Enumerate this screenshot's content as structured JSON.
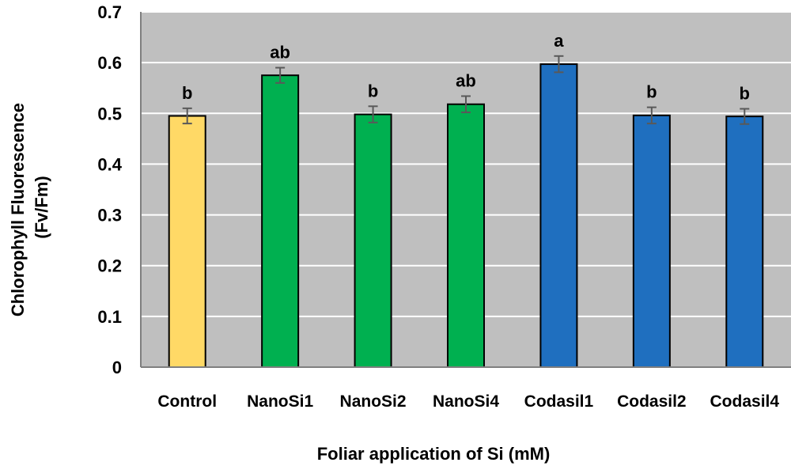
{
  "chart_data": {
    "type": "bar",
    "title": "",
    "xlabel": "Foliar application of Si (mM)",
    "ylabel_lines": [
      "Chlorophyll Fluorescence",
      "(Fv/Fm)"
    ],
    "ylim": [
      0,
      0.7
    ],
    "yticks": [
      "0",
      "0.1",
      "0.2",
      "0.3",
      "0.4",
      "0.5",
      "0.6",
      "0.7"
    ],
    "grid": true,
    "legend": "none",
    "categories": [
      "Control",
      "NanoSi1",
      "NanoSi2",
      "NanoSi4",
      "Codasil1",
      "Codasil2",
      "Codasil4"
    ],
    "values": [
      0.495,
      0.575,
      0.498,
      0.518,
      0.597,
      0.496,
      0.494
    ],
    "errors": [
      0.015,
      0.015,
      0.016,
      0.016,
      0.016,
      0.016,
      0.015
    ],
    "significance": [
      "b",
      "ab",
      "b",
      "ab",
      "a",
      "b",
      "b"
    ],
    "bar_colors": [
      "#FFD966",
      "#00B050",
      "#00B050",
      "#00B050",
      "#1F6FBF",
      "#1F6FBF",
      "#1F6FBF"
    ],
    "plot_background": "#BFBFBF",
    "gridline_color": "#FFFFFF",
    "errorbar_color": "#595959"
  }
}
